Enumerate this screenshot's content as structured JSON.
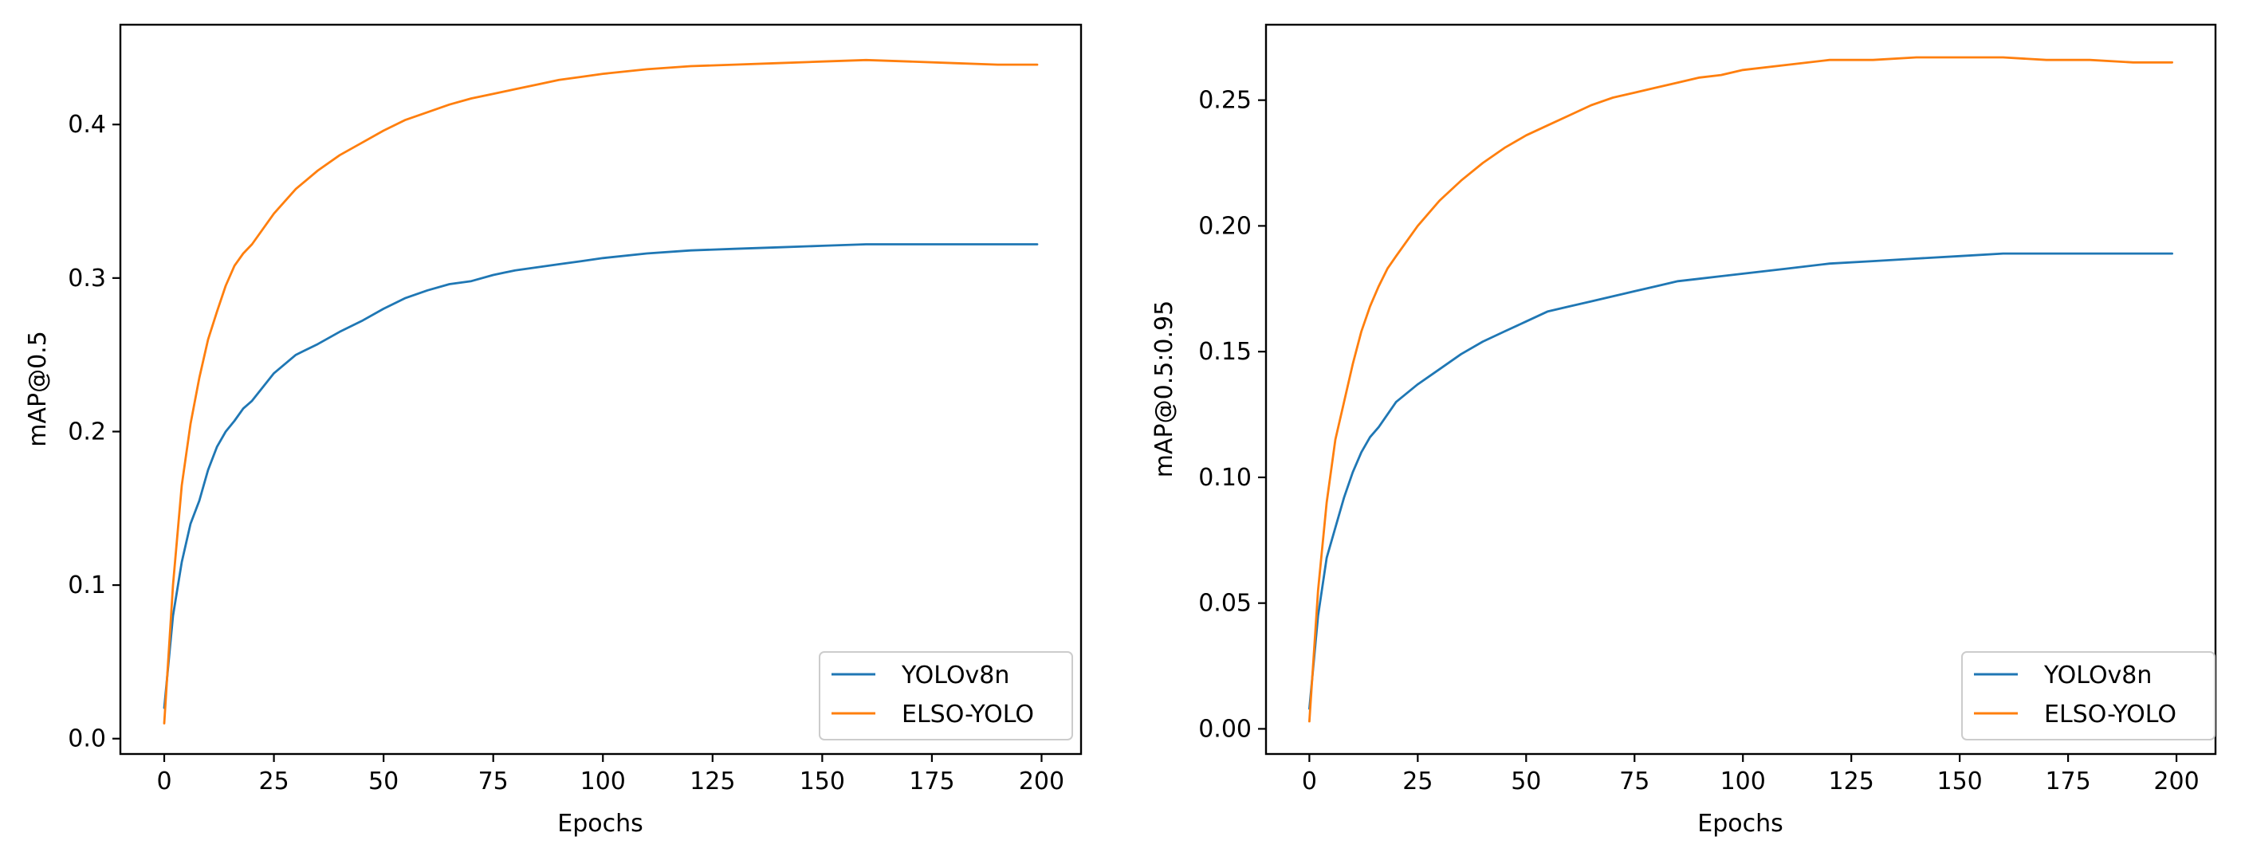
{
  "chart_data": [
    {
      "type": "line",
      "title": "",
      "xlabel": "Epochs",
      "ylabel": "mAP@0.5",
      "xlim": [
        -10,
        209
      ],
      "ylim": [
        -0.01,
        0.465
      ],
      "xticks": [
        0,
        25,
        50,
        75,
        100,
        125,
        150,
        175,
        200
      ],
      "xtick_labels": [
        "0",
        "25",
        "50",
        "75",
        "100",
        "125",
        "150",
        "175",
        "200"
      ],
      "yticks": [
        0.0,
        0.1,
        0.2,
        0.3,
        0.4
      ],
      "ytick_labels": [
        "0.0",
        "0.1",
        "0.2",
        "0.3",
        "0.4"
      ],
      "legend_position": "lower-right",
      "series": [
        {
          "name": "YOLOv8n",
          "color": "#1f77b4",
          "x": [
            0,
            2,
            4,
            6,
            8,
            10,
            12,
            14,
            16,
            18,
            20,
            25,
            30,
            35,
            40,
            45,
            50,
            55,
            60,
            65,
            70,
            75,
            80,
            85,
            90,
            95,
            100,
            110,
            120,
            130,
            140,
            150,
            160,
            170,
            180,
            190,
            199
          ],
          "values": [
            0.02,
            0.08,
            0.115,
            0.14,
            0.155,
            0.175,
            0.19,
            0.2,
            0.207,
            0.215,
            0.22,
            0.238,
            0.25,
            0.257,
            0.265,
            0.272,
            0.28,
            0.287,
            0.292,
            0.296,
            0.298,
            0.302,
            0.305,
            0.307,
            0.309,
            0.311,
            0.313,
            0.316,
            0.318,
            0.319,
            0.32,
            0.321,
            0.322,
            0.322,
            0.322,
            0.322,
            0.322
          ]
        },
        {
          "name": "ELSO-YOLO",
          "color": "#ff7f0e",
          "x": [
            0,
            2,
            4,
            6,
            8,
            10,
            12,
            14,
            16,
            18,
            20,
            25,
            30,
            35,
            40,
            45,
            50,
            55,
            60,
            65,
            70,
            75,
            80,
            85,
            90,
            95,
            100,
            110,
            120,
            130,
            140,
            150,
            160,
            170,
            180,
            190,
            199
          ],
          "values": [
            0.01,
            0.1,
            0.165,
            0.205,
            0.235,
            0.26,
            0.278,
            0.295,
            0.308,
            0.316,
            0.322,
            0.342,
            0.358,
            0.37,
            0.38,
            0.388,
            0.396,
            0.403,
            0.408,
            0.413,
            0.417,
            0.42,
            0.423,
            0.426,
            0.429,
            0.431,
            0.433,
            0.436,
            0.438,
            0.439,
            0.44,
            0.441,
            0.442,
            0.441,
            0.44,
            0.439,
            0.439
          ]
        }
      ]
    },
    {
      "type": "line",
      "title": "",
      "xlabel": "Epochs",
      "ylabel": "mAP@0.5:0.95",
      "xlim": [
        -10,
        209
      ],
      "ylim": [
        -0.01,
        0.28
      ],
      "xticks": [
        0,
        25,
        50,
        75,
        100,
        125,
        150,
        175,
        200
      ],
      "xtick_labels": [
        "0",
        "25",
        "50",
        "75",
        "100",
        "125",
        "150",
        "175",
        "200"
      ],
      "yticks": [
        0.0,
        0.05,
        0.1,
        0.15,
        0.2,
        0.25
      ],
      "ytick_labels": [
        "0.00",
        "0.05",
        "0.10",
        "0.15",
        "0.20",
        "0.25"
      ],
      "legend_position": "lower-right",
      "series": [
        {
          "name": "YOLOv8n",
          "color": "#1f77b4",
          "x": [
            0,
            2,
            4,
            6,
            8,
            10,
            12,
            14,
            16,
            18,
            20,
            25,
            30,
            35,
            40,
            45,
            50,
            55,
            60,
            65,
            70,
            75,
            80,
            85,
            90,
            95,
            100,
            110,
            120,
            130,
            140,
            150,
            160,
            170,
            180,
            190,
            199
          ],
          "values": [
            0.008,
            0.045,
            0.068,
            0.08,
            0.092,
            0.102,
            0.11,
            0.116,
            0.12,
            0.125,
            0.13,
            0.137,
            0.143,
            0.149,
            0.154,
            0.158,
            0.162,
            0.166,
            0.168,
            0.17,
            0.172,
            0.174,
            0.176,
            0.178,
            0.179,
            0.18,
            0.181,
            0.183,
            0.185,
            0.186,
            0.187,
            0.188,
            0.189,
            0.189,
            0.189,
            0.189,
            0.189
          ]
        },
        {
          "name": "ELSO-YOLO",
          "color": "#ff7f0e",
          "x": [
            0,
            2,
            4,
            6,
            8,
            10,
            12,
            14,
            16,
            18,
            20,
            25,
            30,
            35,
            40,
            45,
            50,
            55,
            60,
            65,
            70,
            75,
            80,
            85,
            90,
            95,
            100,
            110,
            120,
            130,
            140,
            150,
            160,
            170,
            180,
            190,
            199
          ],
          "values": [
            0.003,
            0.055,
            0.09,
            0.115,
            0.13,
            0.145,
            0.158,
            0.168,
            0.176,
            0.183,
            0.188,
            0.2,
            0.21,
            0.218,
            0.225,
            0.231,
            0.236,
            0.24,
            0.244,
            0.248,
            0.251,
            0.253,
            0.255,
            0.257,
            0.259,
            0.26,
            0.262,
            0.264,
            0.266,
            0.266,
            0.267,
            0.267,
            0.267,
            0.266,
            0.266,
            0.265,
            0.265
          ]
        }
      ]
    }
  ]
}
